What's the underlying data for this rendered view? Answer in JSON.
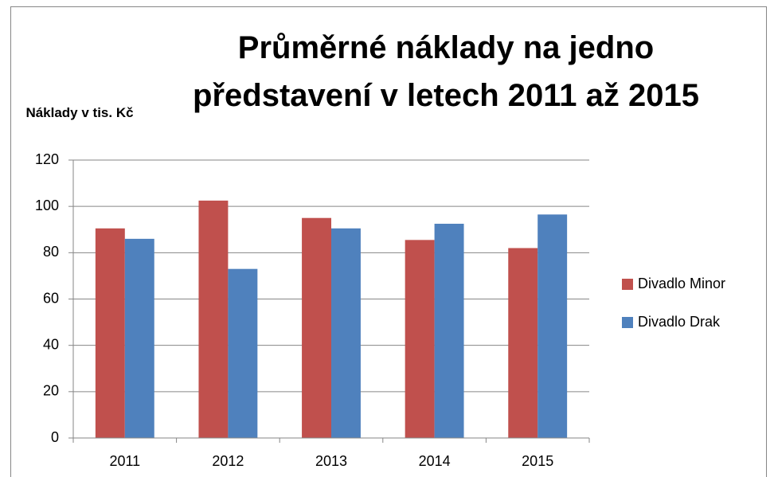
{
  "chart_data": {
    "type": "bar",
    "title": "Průměrné náklady na jedno představení v letech 2011 až 2015",
    "y_label": "Náklady v tis. Kč",
    "categories": [
      "2011",
      "2012",
      "2013",
      "2014",
      "2015"
    ],
    "series": [
      {
        "name": "Divadlo Minor",
        "color": "#c0504d",
        "values": [
          90.5,
          102.5,
          95,
          85.5,
          82
        ]
      },
      {
        "name": "Divadlo Drak",
        "color": "#4f81bd",
        "values": [
          86,
          73,
          90.5,
          92.5,
          96.5
        ]
      }
    ],
    "ylim": [
      0,
      120
    ],
    "yticks": [
      0,
      20,
      40,
      60,
      80,
      100,
      120
    ],
    "grid": true,
    "legend": "right"
  }
}
